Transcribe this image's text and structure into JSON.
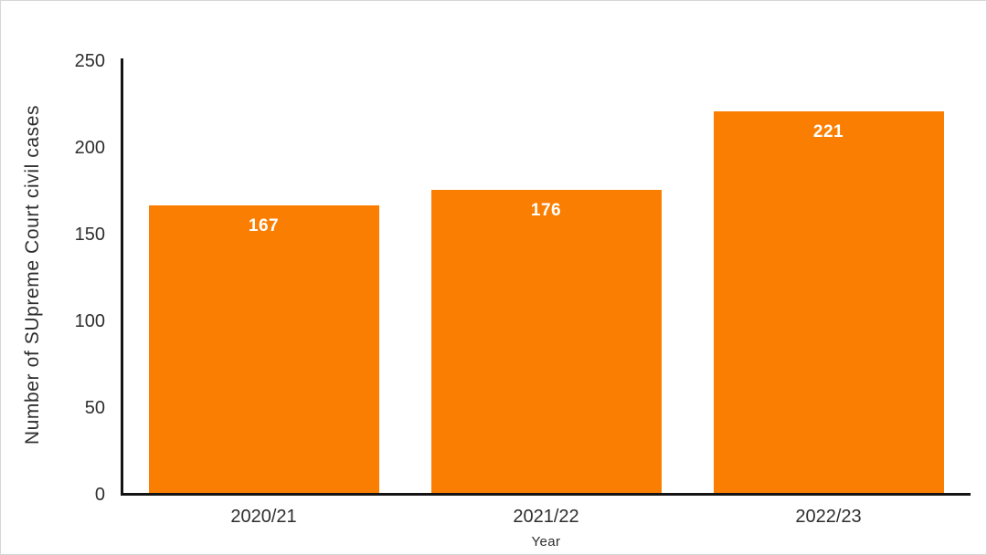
{
  "chart_data": {
    "type": "bar",
    "title": "",
    "categories": [
      "2020/21",
      "2021/22",
      "2022/23"
    ],
    "values": [
      167,
      176,
      221
    ],
    "data_labels": [
      "167",
      "176",
      "221"
    ],
    "xlabel": "Year",
    "ylabel": "Number of SUpreme Court civil cases",
    "ylim": [
      0,
      250
    ],
    "yticks": [
      0,
      50,
      100,
      150,
      200,
      250
    ],
    "grid": false,
    "legend": "none",
    "bar_color": "#FA7E01",
    "data_label_color": "#FFFFFF",
    "axis_color": "#141414",
    "text_color": "#2E2E2E",
    "background_color": "#FFFFFF",
    "border_color": "#D6D6D6"
  }
}
